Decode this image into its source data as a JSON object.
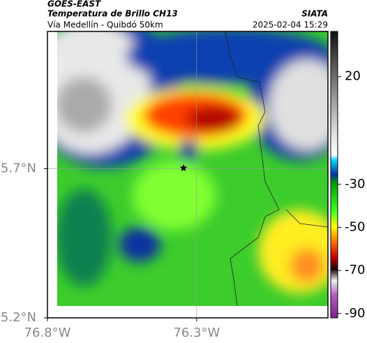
{
  "header": {
    "title": "GOES-EAST",
    "subtitle": "Temperatura de Brillo CH13",
    "source": "SIATA",
    "region": "Vía Medellín - Quibdó 50km",
    "timestamp": "2025-02-04 15:29"
  },
  "map": {
    "xlim": [
      -76.8,
      -75.86
    ],
    "ylim": [
      5.2,
      6.16
    ],
    "xticks": [
      {
        "value": -76.8,
        "label": "76.8°W"
      },
      {
        "value": -76.3,
        "label": "76.3°W"
      }
    ],
    "yticks": [
      {
        "value": 5.7,
        "label": "5.7°N"
      },
      {
        "value": 5.2,
        "label": "5.2°N"
      }
    ],
    "grid": true
  },
  "colorbar": {
    "lim": [
      -92,
      41
    ],
    "ticks": [
      20,
      -30,
      -50,
      -70,
      -90
    ]
  }
}
